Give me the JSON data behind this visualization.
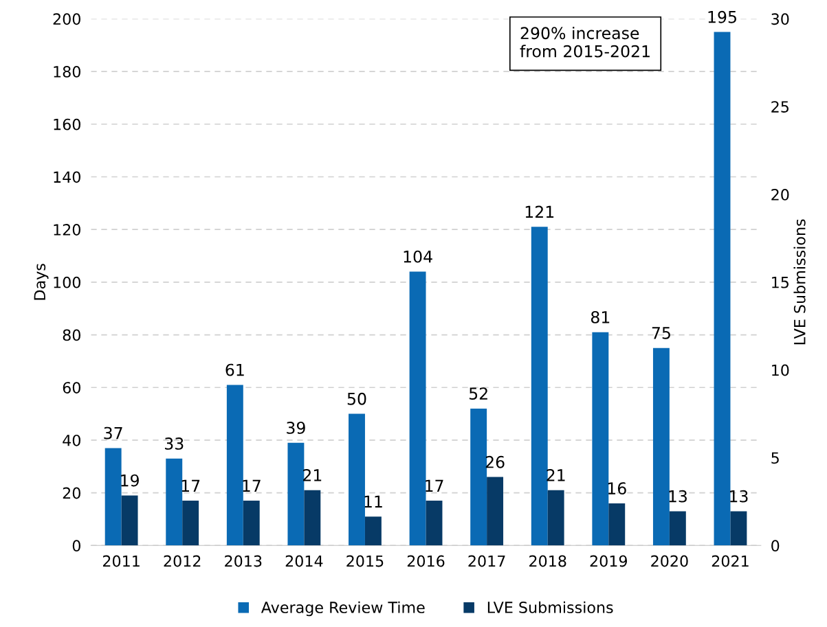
{
  "chart_data": {
    "type": "bar",
    "categories": [
      "2011",
      "2012",
      "2013",
      "2014",
      "2015",
      "2016",
      "2017",
      "2018",
      "2019",
      "2020",
      "2021"
    ],
    "series": [
      {
        "name": "Average Review Time",
        "color": "#0a6ab4",
        "values": [
          37,
          33,
          61,
          39,
          50,
          104,
          52,
          121,
          81,
          75,
          195
        ]
      },
      {
        "name": "LVE Submissions",
        "color": "#073a66",
        "values": [
          19,
          17,
          17,
          21,
          11,
          17,
          26,
          21,
          16,
          13,
          13
        ]
      }
    ],
    "ylabel": "Days",
    "y2label": "LVE Submissions",
    "ylim": [
      0,
      200
    ],
    "yticks": [
      0,
      20,
      40,
      60,
      80,
      100,
      120,
      140,
      160,
      180,
      200
    ],
    "y2lim": [
      0,
      30
    ],
    "y2ticks": [
      0,
      5,
      10,
      15,
      20,
      25,
      30
    ],
    "annotations": [
      "290% increase\nfrom 2015-2021"
    ],
    "data_labels": true,
    "grid": "y",
    "legend": "bottom"
  }
}
